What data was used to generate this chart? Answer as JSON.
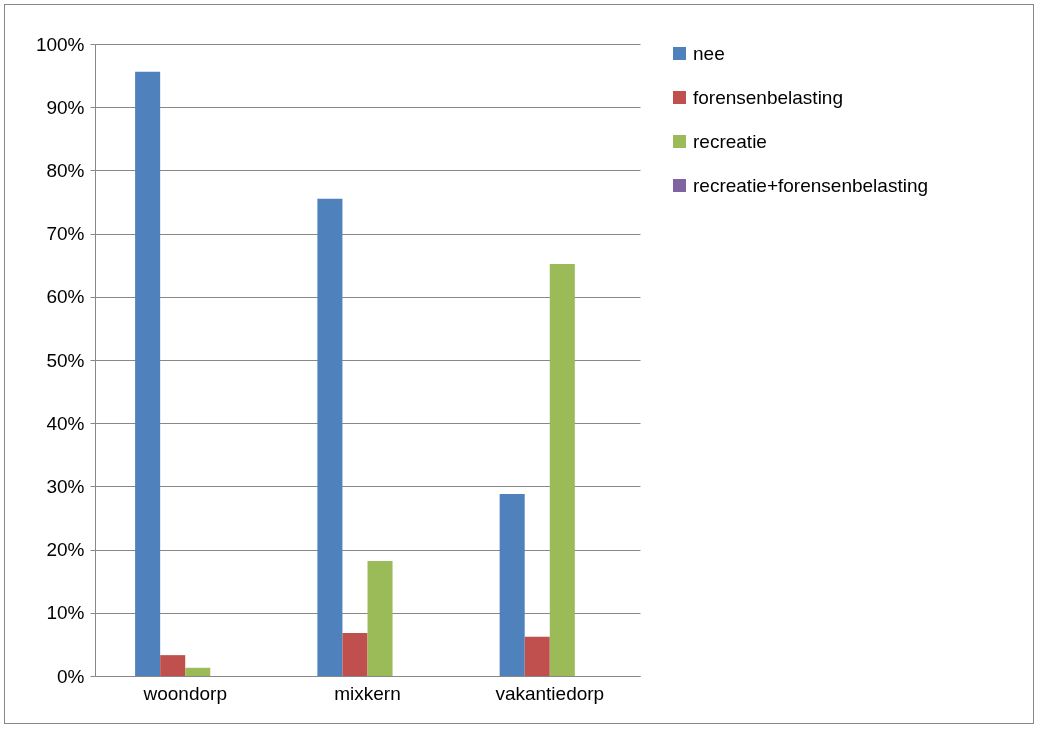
{
  "chart_data": {
    "type": "bar",
    "categories": [
      "woondorp",
      "mixkern",
      "vakantiedorp"
    ],
    "series": [
      {
        "name": "nee",
        "color": "#4f81bd",
        "values": [
          95.6,
          75.5,
          28.8
        ]
      },
      {
        "name": "forensenbelasting",
        "color": "#c0504d",
        "values": [
          3.3,
          6.8,
          6.2
        ]
      },
      {
        "name": "recreatie",
        "color": "#9bbb59",
        "values": [
          1.3,
          18.2,
          65.2
        ]
      },
      {
        "name": "recreatie+forensenbelasting",
        "color": "#8064a2",
        "values": [
          0,
          0,
          0
        ]
      }
    ],
    "ylim": [
      0,
      100
    ],
    "yticks": [
      {
        "value": 0,
        "label": "0%"
      },
      {
        "value": 10,
        "label": "10%"
      },
      {
        "value": 20,
        "label": "20%"
      },
      {
        "value": 30,
        "label": "30%"
      },
      {
        "value": 40,
        "label": "40%"
      },
      {
        "value": 50,
        "label": "50%"
      },
      {
        "value": 60,
        "label": "60%"
      },
      {
        "value": 70,
        "label": "70%"
      },
      {
        "value": 80,
        "label": "80%"
      },
      {
        "value": 90,
        "label": "90%"
      },
      {
        "value": 100,
        "label": "100%"
      }
    ],
    "grid": "y",
    "legend": "right"
  }
}
